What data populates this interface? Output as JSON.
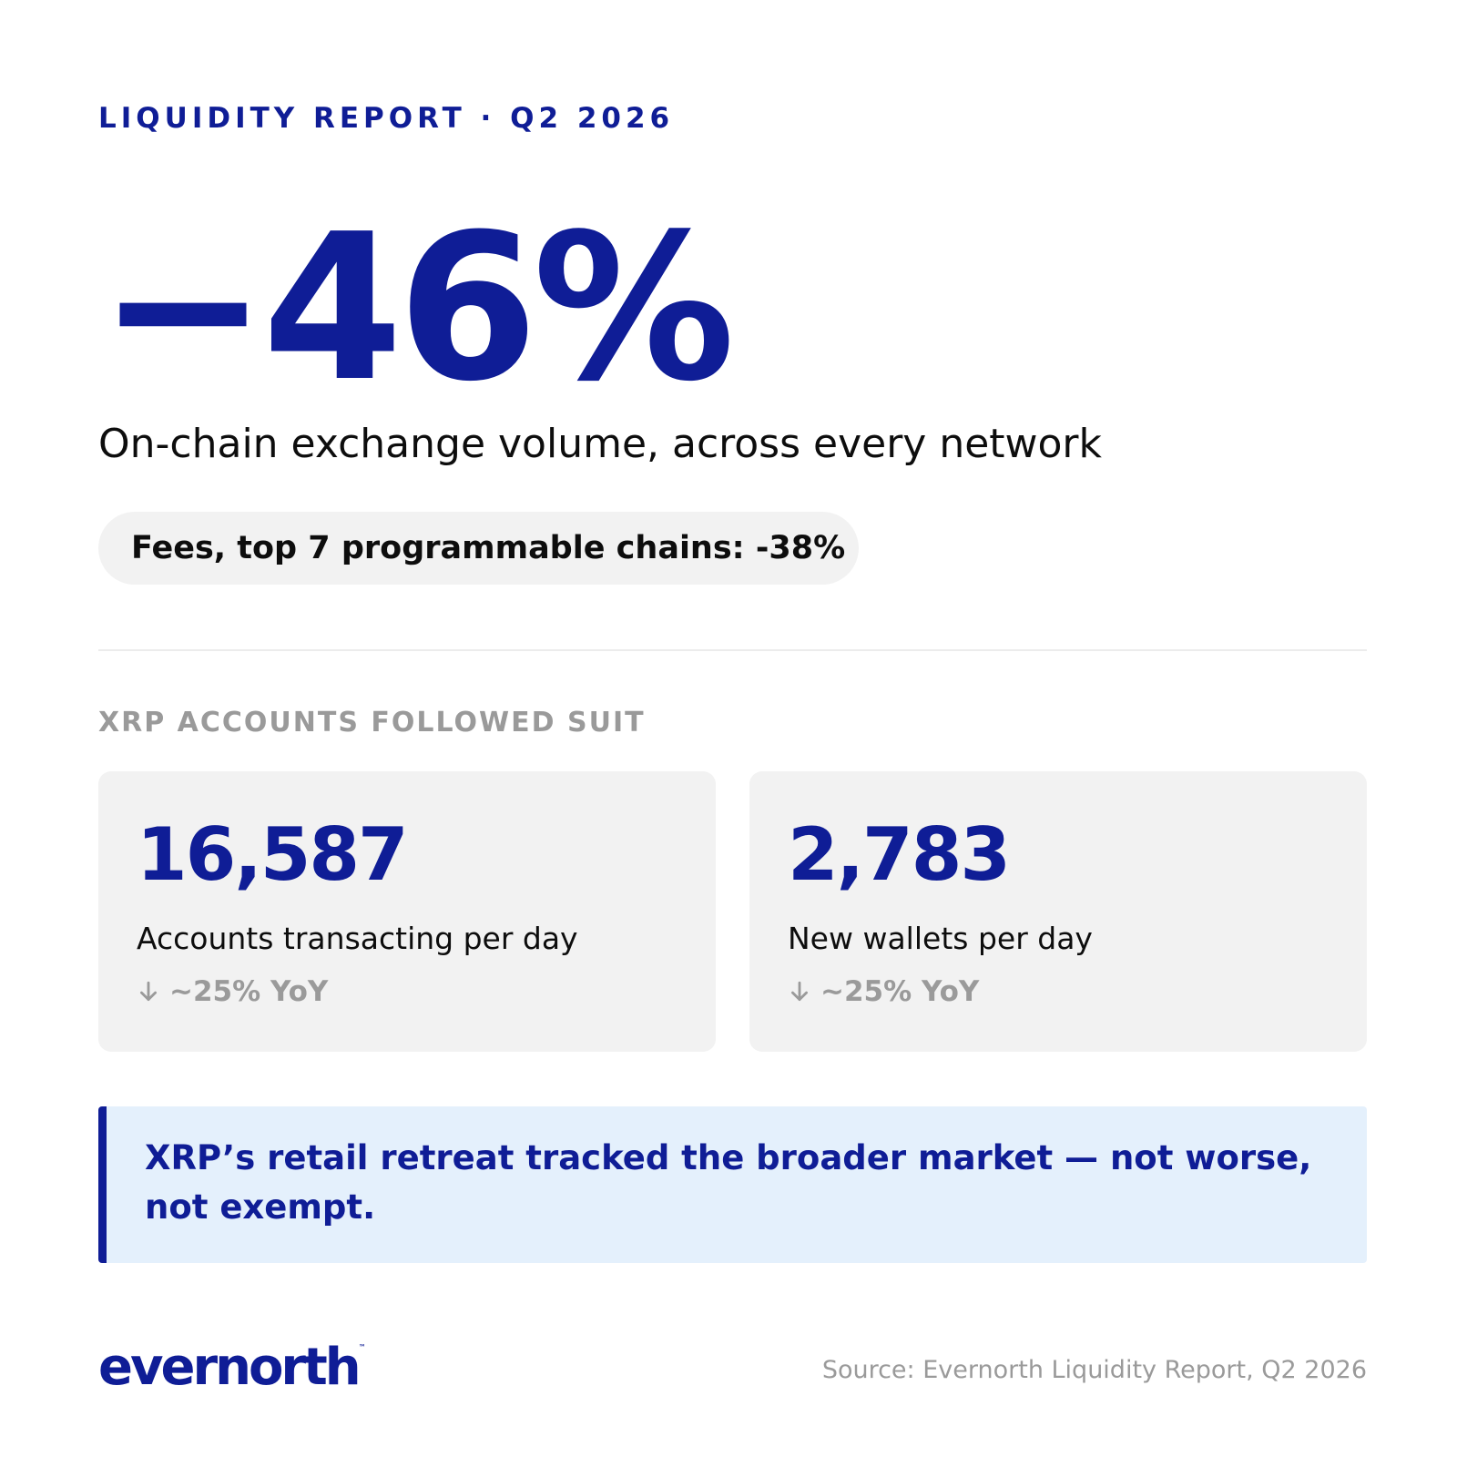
{
  "header": {
    "eyebrow": "LIQUIDITY REPORT · Q2 2026"
  },
  "hero": {
    "value": "−46%",
    "subtitle": "On-chain exchange volume, across every network"
  },
  "pill": {
    "text": "Fees, top 7 programmable chains: -38%"
  },
  "section": {
    "title": "XRP ACCOUNTS FOLLOWED SUIT"
  },
  "cards": [
    {
      "value": "16,587",
      "label": "Accounts transacting per day",
      "change": "~25% YoY",
      "change_icon": "arrow-down-icon"
    },
    {
      "value": "2,783",
      "label": "New wallets per day",
      "change": "~25% YoY",
      "change_icon": "arrow-down-icon"
    }
  ],
  "callout": {
    "text": "XRP’s retail retreat tracked the broader market — not worse, not exempt."
  },
  "footer": {
    "logo": "evernorth",
    "trademark": "™",
    "source": "Source: Evernorth Liquidity Report, Q2 2026"
  },
  "colors": {
    "accent": "#0f1d96",
    "muted": "#9a9a9a",
    "card_bg": "#f2f2f2",
    "callout_bg": "#e4f0fc"
  }
}
